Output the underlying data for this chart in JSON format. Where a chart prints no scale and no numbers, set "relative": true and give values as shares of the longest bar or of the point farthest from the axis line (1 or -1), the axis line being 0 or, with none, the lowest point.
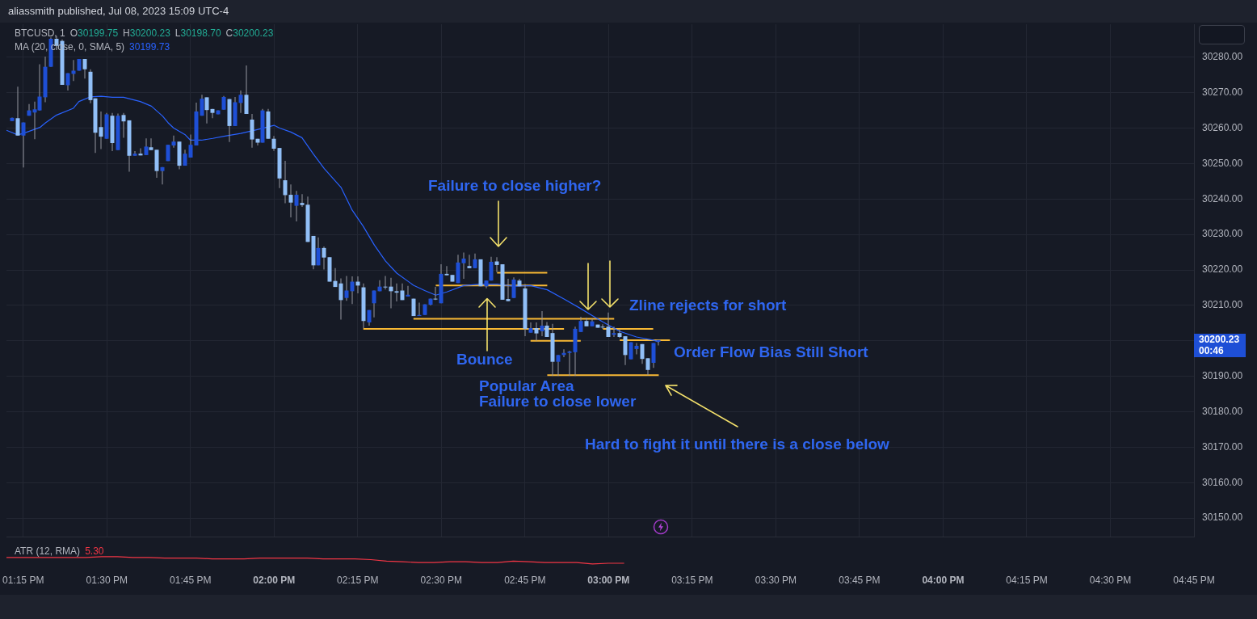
{
  "chart_data": [
    {
      "type": "candlestick",
      "title": "BTCUSD, 1",
      "subtitle": "O30199.75 H30200.23 L30198.70 C30200.23",
      "x": [
        "2023-07-08T13:13",
        "2023-07-08T13:14",
        "2023-07-08T13:15",
        "2023-07-08T13:16",
        "2023-07-08T13:17",
        "2023-07-08T13:18",
        "2023-07-08T13:19",
        "2023-07-08T13:20",
        "2023-07-08T13:21",
        "2023-07-08T13:22",
        "2023-07-08T13:23",
        "2023-07-08T13:24",
        "2023-07-08T13:25",
        "2023-07-08T13:26",
        "2023-07-08T13:27",
        "2023-07-08T13:28",
        "2023-07-08T13:29",
        "2023-07-08T13:30",
        "2023-07-08T13:31",
        "2023-07-08T13:32",
        "2023-07-08T13:33",
        "2023-07-08T13:34",
        "2023-07-08T13:35",
        "2023-07-08T13:36",
        "2023-07-08T13:37",
        "2023-07-08T13:38",
        "2023-07-08T13:39",
        "2023-07-08T13:40",
        "2023-07-08T13:41",
        "2023-07-08T13:42",
        "2023-07-08T13:43",
        "2023-07-08T13:44",
        "2023-07-08T13:45",
        "2023-07-08T13:46",
        "2023-07-08T13:47",
        "2023-07-08T13:48",
        "2023-07-08T13:49",
        "2023-07-08T13:50",
        "2023-07-08T13:51",
        "2023-07-08T13:52",
        "2023-07-08T13:53",
        "2023-07-08T13:54",
        "2023-07-08T13:55",
        "2023-07-08T13:56",
        "2023-07-08T13:57",
        "2023-07-08T13:58",
        "2023-07-08T13:59",
        "2023-07-08T14:00",
        "2023-07-08T14:01",
        "2023-07-08T14:02",
        "2023-07-08T14:03",
        "2023-07-08T14:04",
        "2023-07-08T14:05",
        "2023-07-08T14:06",
        "2023-07-08T14:07",
        "2023-07-08T14:08",
        "2023-07-08T14:09",
        "2023-07-08T14:10",
        "2023-07-08T14:11",
        "2023-07-08T14:12",
        "2023-07-08T14:13",
        "2023-07-08T14:14",
        "2023-07-08T14:15",
        "2023-07-08T14:16",
        "2023-07-08T14:17",
        "2023-07-08T14:18",
        "2023-07-08T14:19",
        "2023-07-08T14:20",
        "2023-07-08T14:21",
        "2023-07-08T14:22",
        "2023-07-08T14:23",
        "2023-07-08T14:24",
        "2023-07-08T14:25",
        "2023-07-08T14:26",
        "2023-07-08T14:27",
        "2023-07-08T14:28",
        "2023-07-08T14:29",
        "2023-07-08T14:30",
        "2023-07-08T14:31",
        "2023-07-08T14:32",
        "2023-07-08T14:33",
        "2023-07-08T14:34",
        "2023-07-08T14:35",
        "2023-07-08T14:36",
        "2023-07-08T14:37",
        "2023-07-08T14:38",
        "2023-07-08T14:39",
        "2023-07-08T14:40",
        "2023-07-08T14:41",
        "2023-07-08T14:42",
        "2023-07-08T14:43",
        "2023-07-08T14:44",
        "2023-07-08T14:45",
        "2023-07-08T14:46",
        "2023-07-08T14:47",
        "2023-07-08T14:48",
        "2023-07-08T14:49",
        "2023-07-08T14:50",
        "2023-07-08T14:51",
        "2023-07-08T14:52",
        "2023-07-08T14:53",
        "2023-07-08T14:54",
        "2023-07-08T14:55",
        "2023-07-08T14:56",
        "2023-07-08T14:57",
        "2023-07-08T14:58",
        "2023-07-08T14:59",
        "2023-07-08T15:00",
        "2023-07-08T15:01",
        "2023-07-08T15:02",
        "2023-07-08T15:03",
        "2023-07-08T15:04",
        "2023-07-08T15:05",
        "2023-07-08T15:06",
        "2023-07-08T15:07",
        "2023-07-08T15:08",
        "2023-07-08T15:09"
      ],
      "ohlc": [
        [
          30262.0,
          30263.0,
          30262.0,
          30262.9
        ],
        [
          30262.8,
          30271.7,
          30257.9,
          30257.9
        ],
        [
          30257.9,
          30261.6,
          30248.9,
          30261.6
        ],
        [
          30263.5,
          30266.8,
          30263.5,
          30265.0
        ],
        [
          30264.4,
          30267.5,
          30256.9,
          30265.3
        ],
        [
          30265.0,
          30278.0,
          30264.9,
          30268.9
        ],
        [
          30268.7,
          30280.2,
          30267.3,
          30277.3
        ],
        [
          30277.3,
          30285.6,
          30277.3,
          30285.2
        ],
        [
          30285.2,
          30286.0,
          30283.2,
          30283.2
        ],
        [
          30284.6,
          30285.0,
          30272.2,
          30272.2
        ],
        [
          30272.1,
          30275.5,
          30270.6,
          30275.5
        ],
        [
          30275.3,
          30279.2,
          30273.3,
          30276.2
        ],
        [
          30276.2,
          30279.5,
          30276.2,
          30279.5
        ],
        [
          30279.5,
          30279.5,
          30274.0,
          30276.6
        ],
        [
          30275.9,
          30276.6,
          30267.0,
          30267.9
        ],
        [
          30268.4,
          30268.4,
          30253.0,
          30258.7
        ],
        [
          30260.3,
          30264.7,
          30254.1,
          30257.6
        ],
        [
          30257.0,
          30264.3,
          30257.0,
          30263.9
        ],
        [
          30263.5,
          30264.3,
          30253.5,
          30255.8
        ],
        [
          30253.8,
          30264.1,
          30253.8,
          30263.5
        ],
        [
          30263.7,
          30264.3,
          30257.3,
          30261.9
        ],
        [
          30262.2,
          30262.2,
          30247.7,
          30252.2
        ],
        [
          30252.2,
          30253.5,
          30252.2,
          30252.8
        ],
        [
          30252.8,
          30254.3,
          30252.3,
          30252.3
        ],
        [
          30252.4,
          30257.1,
          30252.4,
          30254.8
        ],
        [
          30254.6,
          30257.1,
          30253.8,
          30253.8
        ],
        [
          30253.9,
          30253.9,
          30246.0,
          30247.9
        ],
        [
          30247.9,
          30249.0,
          30244.1,
          30249.0
        ],
        [
          30250.7,
          30255.3,
          30250.7,
          30255.3
        ],
        [
          30255.1,
          30257.9,
          30254.5,
          30256.2
        ],
        [
          30256.2,
          30256.2,
          30248.4,
          30249.4
        ],
        [
          30249.4,
          30253.9,
          30249.4,
          30252.8
        ],
        [
          30251.7,
          30258.2,
          30251.7,
          30255.3
        ],
        [
          30255.1,
          30267.2,
          30255.1,
          30264.7
        ],
        [
          30263.5,
          30269.4,
          30263.5,
          30268.3
        ],
        [
          30268.7,
          30268.7,
          30261.3,
          30265.1
        ],
        [
          30265.4,
          30265.4,
          30262.8,
          30264.3
        ],
        [
          30263.9,
          30265.0,
          30263.9,
          30265.0
        ],
        [
          30265.2,
          30269.1,
          30265.2,
          30268.8
        ],
        [
          30268.2,
          30268.2,
          30256.1,
          30260.6
        ],
        [
          30260.6,
          30268.8,
          30260.6,
          30267.3
        ],
        [
          30267.1,
          30270.6,
          30264.3,
          30269.4
        ],
        [
          30269.4,
          30277.7,
          30264.0,
          30264.0
        ],
        [
          30262.4,
          30264.0,
          30254.5,
          30256.8
        ],
        [
          30257.0,
          30257.0,
          30255.1,
          30255.9
        ],
        [
          30255.9,
          30265.4,
          30255.9,
          30265.0
        ],
        [
          30264.7,
          30265.4,
          30257.0,
          30257.0
        ],
        [
          30257.0,
          30257.8,
          30253.6,
          30254.2
        ],
        [
          30254.4,
          30254.4,
          30243.1,
          30245.8
        ],
        [
          30245.3,
          30250.8,
          30238.8,
          30241.1
        ],
        [
          30241.2,
          30244.1,
          30234.8,
          30239.0
        ],
        [
          30238.1,
          30242.3,
          30233.7,
          30241.2
        ],
        [
          30238.9,
          30241.4,
          30237.8,
          30238.3
        ],
        [
          30238.4,
          30240.7,
          30227.9,
          30227.9
        ],
        [
          30229.6,
          30229.6,
          30220.2,
          30221.3
        ],
        [
          30221.3,
          30229.2,
          30221.3,
          30226.2
        ],
        [
          30226.2,
          30226.6,
          30220.1,
          30223.5
        ],
        [
          30223.6,
          30223.6,
          30216.7,
          30216.7
        ],
        [
          30216.9,
          30220.5,
          30215.2,
          30215.2
        ],
        [
          30216.2,
          30217.6,
          30206.0,
          30211.5
        ],
        [
          30212.1,
          30218.3,
          30211.3,
          30214.2
        ],
        [
          30214.0,
          30218.2,
          30210.4,
          30216.7
        ],
        [
          30216.7,
          30218.2,
          30213.4,
          30215.6
        ],
        [
          30215.1,
          30216.2,
          30203.6,
          30205.6
        ],
        [
          30205.2,
          30208.7,
          30204.3,
          30208.7
        ],
        [
          30210.6,
          30214.2,
          30206.6,
          30214.2
        ],
        [
          30214.0,
          30217.1,
          30214.0,
          30215.3
        ],
        [
          30215.3,
          30218.3,
          30214.5,
          30215.1
        ],
        [
          30215.3,
          30217.8,
          30209.2,
          30214.0
        ],
        [
          30214.0,
          30216.2,
          30211.1,
          30213.6
        ],
        [
          30214.2,
          30216.2,
          30211.5,
          30211.5
        ],
        [
          30212.5,
          30215.5,
          30212.5,
          30213.0
        ],
        [
          30211.9,
          30211.9,
          30207.0,
          30207.0
        ],
        [
          30207.0,
          30210.8,
          30207.0,
          30207.3
        ],
        [
          30207.3,
          30210.3,
          30207.3,
          30210.3
        ],
        [
          30210.2,
          30211.9,
          30210.0,
          30211.9
        ],
        [
          30211.9,
          30215.2,
          30211.5,
          30211.7
        ],
        [
          30210.6,
          30221.6,
          30210.6,
          30218.9
        ],
        [
          30218.9,
          30221.1,
          30218.5,
          30218.5
        ],
        [
          30218.6,
          30218.6,
          30216.7,
          30216.7
        ],
        [
          30216.3,
          30224.3,
          30216.3,
          30222.1
        ],
        [
          30221.9,
          30224.9,
          30217.5,
          30223.2
        ],
        [
          30221.1,
          30224.3,
          30220.5,
          30220.5
        ],
        [
          30220.5,
          30224.6,
          30220.5,
          30223.0
        ],
        [
          30223.0,
          30223.0,
          30215.4,
          30215.4
        ],
        [
          30215.4,
          30217.0,
          30214.8,
          30217.0
        ],
        [
          30217.0,
          30223.7,
          30217.0,
          30222.3
        ],
        [
          30222.4,
          30223.6,
          30219.4,
          30221.4
        ],
        [
          30221.6,
          30221.6,
          30211.6,
          30211.6
        ],
        [
          30211.8,
          30217.5,
          30211.2,
          30211.2
        ],
        [
          30212.1,
          30217.9,
          30212.1,
          30217.3
        ],
        [
          30217.0,
          30217.5,
          30215.4,
          30215.4
        ],
        [
          30214.8,
          30216.0,
          30201.3,
          30203.4
        ],
        [
          30202.3,
          30205.2,
          30202.3,
          30203.6
        ],
        [
          30203.6,
          30205.2,
          30200.0,
          30202.1
        ],
        [
          30202.7,
          30208.4,
          30201.3,
          30204.3
        ],
        [
          30204.3,
          30205.3,
          30201.1,
          30201.1
        ],
        [
          30202.2,
          30204.8,
          30190.1,
          30194.1
        ],
        [
          30194.1,
          30196.0,
          30190.1,
          30196.0
        ],
        [
          30196.0,
          30197.6,
          30195.4,
          30196.6
        ],
        [
          30196.6,
          30197.2,
          30190.1,
          30197.0
        ],
        [
          30196.8,
          30204.0,
          30190.1,
          30203.4
        ],
        [
          30202.5,
          30206.8,
          30202.5,
          30205.6
        ],
        [
          30205.6,
          30206.5,
          30204.1,
          30204.1
        ],
        [
          30204.1,
          30206.3,
          30204.1,
          30205.5
        ],
        [
          30204.6,
          30204.6,
          30203.7,
          30203.7
        ],
        [
          30204.0,
          30204.7,
          30203.4,
          30203.8
        ],
        [
          30204.0,
          30208.0,
          30201.1,
          30201.1
        ],
        [
          30201.7,
          30204.0,
          30201.1,
          30202.2
        ],
        [
          30202.2,
          30203.3,
          30200.8,
          30201.1
        ],
        [
          30201.3,
          30201.3,
          30193.2,
          30196.0
        ],
        [
          30194.8,
          30199.6,
          30194.8,
          30199.6
        ],
        [
          30197.7,
          30199.4,
          30196.2,
          30198.6
        ],
        [
          30199.1,
          30199.1,
          30193.5,
          30194.9
        ],
        [
          30195.1,
          30195.1,
          30190.3,
          30191.8
        ],
        [
          30193.8,
          30199.4,
          30192.4,
          30199.4
        ],
        [
          30199.75,
          30200.23,
          30198.7,
          30200.23
        ]
      ],
      "colors": [
        "#1e4fd6",
        "#91bff7",
        "#1e4fd6",
        "#1e4fd6",
        "#1e4fd6",
        "#1e4fd6",
        "#1e4fd6",
        "#1e4fd6",
        "#91bff7",
        "#91bff7",
        "#1e4fd6",
        "#1e4fd6",
        "#1e4fd6",
        "#91bff7",
        "#91bff7",
        "#91bff7",
        "#91bff7",
        "#1e4fd6",
        "#91bff7",
        "#1e4fd6",
        "#91bff7",
        "#91bff7",
        "#1e4fd6",
        "#91bff7",
        "#1e4fd6",
        "#91bff7",
        "#91bff7",
        "#1e4fd6",
        "#1e4fd6",
        "#1e4fd6",
        "#91bff7",
        "#1e4fd6",
        "#1e4fd6",
        "#1e4fd6",
        "#1e4fd6",
        "#91bff7",
        "#91bff7",
        "#1e4fd6",
        "#1e4fd6",
        "#91bff7",
        "#1e4fd6",
        "#1e4fd6",
        "#91bff7",
        "#91bff7",
        "#91bff7",
        "#1e4fd6",
        "#91bff7",
        "#91bff7",
        "#91bff7",
        "#91bff7",
        "#91bff7",
        "#1e4fd6",
        "#91bff7",
        "#91bff7",
        "#91bff7",
        "#1e4fd6",
        "#91bff7",
        "#91bff7",
        "#91bff7",
        "#91bff7",
        "#1e4fd6",
        "#1e4fd6",
        "#91bff7",
        "#91bff7",
        "#1e4fd6",
        "#1e4fd6",
        "#1e4fd6",
        "#91bff7",
        "#91bff7",
        "#91bff7",
        "#91bff7",
        "#1e4fd6",
        "#91bff7",
        "#1e4fd6",
        "#1e4fd6",
        "#1e4fd6",
        "#91bff7",
        "#1e4fd6",
        "#91bff7",
        "#91bff7",
        "#1e4fd6",
        "#1e4fd6",
        "#91bff7",
        "#1e4fd6",
        "#91bff7",
        "#1e4fd6",
        "#1e4fd6",
        "#91bff7",
        "#91bff7",
        "#91bff7",
        "#1e4fd6",
        "#91bff7",
        "#91bff7",
        "#1e4fd6",
        "#91bff7",
        "#1e4fd6",
        "#91bff7",
        "#91bff7",
        "#1e4fd6",
        "#1e4fd6",
        "#1e4fd6",
        "#1e4fd6",
        "#1e4fd6",
        "#91bff7",
        "#1e4fd6",
        "#91bff7",
        "#91bff7",
        "#91bff7",
        "#1e4fd6",
        "#91bff7",
        "#91bff7",
        "#1e4fd6",
        "#1e4fd6",
        "#91bff7",
        "#91bff7",
        "#1e4fd6",
        "#1e4fd6"
      ],
      "series": [
        {
          "type": "line",
          "name": "MA (20, close, 0, SMA, 5)",
          "color": "#2962ff",
          "x": [
            "2023-07-08T13:12",
            "2023-07-08T13:14",
            "2023-07-08T13:15",
            "2023-07-08T13:18",
            "2023-07-08T13:19",
            "2023-07-08T13:21",
            "2023-07-08T13:24",
            "2023-07-08T13:25",
            "2023-07-08T13:27",
            "2023-07-08T13:29",
            "2023-07-08T13:31",
            "2023-07-08T13:33",
            "2023-07-08T13:36",
            "2023-07-08T13:38",
            "2023-07-08T13:40",
            "2023-07-08T13:41",
            "2023-07-08T13:42",
            "2023-07-08T13:44",
            "2023-07-08T13:45",
            "2023-07-08T13:47",
            "2023-07-08T13:49",
            "2023-07-08T13:51",
            "2023-07-08T13:54",
            "2023-07-08T13:57",
            "2023-07-08T14:00",
            "2023-07-08T14:01",
            "2023-07-08T14:03",
            "2023-07-08T14:05",
            "2023-07-08T14:07",
            "2023-07-08T14:09",
            "2023-07-08T14:12",
            "2023-07-08T14:14",
            "2023-07-08T14:16",
            "2023-07-08T14:18",
            "2023-07-08T14:20",
            "2023-07-08T14:22",
            "2023-07-08T14:25",
            "2023-07-08T14:27",
            "2023-07-08T14:29",
            "2023-07-08T14:31",
            "2023-07-08T14:34",
            "2023-07-08T14:37",
            "2023-07-08T14:40",
            "2023-07-08T14:43",
            "2023-07-08T14:46",
            "2023-07-08T14:49",
            "2023-07-08T14:52",
            "2023-07-08T14:55",
            "2023-07-08T14:57",
            "2023-07-08T14:59",
            "2023-07-08T15:02",
            "2023-07-08T15:05",
            "2023-07-08T15:08",
            "2023-07-08T15:09"
          ],
          "values": [
            30259.4,
            30258.1,
            30258.5,
            30260.2,
            30261.5,
            30263.7,
            30265.6,
            30267.5,
            30268.8,
            30269.0,
            30268.7,
            30268.7,
            30267.5,
            30266.2,
            30263.4,
            30261.5,
            30260.0,
            30258.2,
            30256.6,
            30256.6,
            30257.1,
            30257.7,
            30258.5,
            30259.6,
            30260.8,
            30260.0,
            30258.9,
            30257.3,
            30252.8,
            30248.6,
            30243.3,
            30236.9,
            30232.3,
            30227.0,
            30222.5,
            30219.1,
            30215.7,
            30214.2,
            30212.9,
            30213.8,
            30215.6,
            30216.0,
            30216.0,
            30215.4,
            30215.6,
            30214.4,
            30211.8,
            30209.1,
            30207.2,
            30205.3,
            30202.7,
            30201.1,
            30200.2,
            30199.7
          ]
        },
        {
          "type": "line",
          "color": "#f9b934",
          "x": [
            "2023-07-08T14:40",
            "2023-07-08T14:49"
          ],
          "values": [
            30219.2,
            30219.2
          ]
        },
        {
          "type": "line",
          "color": "#f9b934",
          "x": [
            "2023-07-08T14:29",
            "2023-07-08T14:49"
          ],
          "values": [
            30215.6,
            30215.6
          ]
        },
        {
          "type": "line",
          "color": "#f9b934",
          "x": [
            "2023-07-08T14:25",
            "2023-07-08T15:01"
          ],
          "values": [
            30206.2,
            30206.2
          ]
        },
        {
          "type": "line",
          "color": "#f9b934",
          "x": [
            "2023-07-08T14:16",
            "2023-07-08T14:52"
          ],
          "values": [
            30203.4,
            30203.4
          ]
        },
        {
          "type": "line",
          "color": "#f9b934",
          "x": [
            "2023-07-08T14:59",
            "2023-07-08T15:08"
          ],
          "values": [
            30203.4,
            30203.4
          ]
        },
        {
          "type": "line",
          "color": "#f9b934",
          "x": [
            "2023-07-08T14:46",
            "2023-07-08T14:55"
          ],
          "values": [
            30200.0,
            30200.0
          ]
        },
        {
          "type": "line",
          "color": "#f9b934",
          "x": [
            "2023-07-08T15:02",
            "2023-07-08T15:11"
          ],
          "values": [
            30200.2,
            30200.2
          ]
        },
        {
          "type": "line",
          "color": "#f9b934",
          "x": [
            "2023-07-08T14:49",
            "2023-07-08T15:09"
          ],
          "values": [
            30190.3,
            30190.3
          ]
        }
      ],
      "xlim": [
        "2023-07-08T13:12",
        "2023-07-08T16:45"
      ],
      "xticks": [
        {
          "value": "2023-07-08T13:15",
          "label": "01:15 PM"
        },
        {
          "value": "2023-07-08T13:30",
          "label": "01:30 PM"
        },
        {
          "value": "2023-07-08T13:45",
          "label": "01:45 PM"
        },
        {
          "value": "2023-07-08T14:00",
          "label": "02:00 PM"
        },
        {
          "value": "2023-07-08T14:15",
          "label": "02:15 PM"
        },
        {
          "value": "2023-07-08T14:30",
          "label": "02:30 PM"
        },
        {
          "value": "2023-07-08T14:45",
          "label": "02:45 PM"
        },
        {
          "value": "2023-07-08T15:00",
          "label": "03:00 PM"
        },
        {
          "value": "2023-07-08T15:15",
          "label": "03:15 PM"
        },
        {
          "value": "2023-07-08T15:30",
          "label": "03:30 PM"
        },
        {
          "value": "2023-07-08T15:45",
          "label": "03:45 PM"
        },
        {
          "value": "2023-07-08T16:00",
          "label": "04:00 PM"
        },
        {
          "value": "2023-07-08T16:15",
          "label": "04:15 PM"
        },
        {
          "value": "2023-07-08T16:30",
          "label": "04:30 PM"
        },
        {
          "value": "2023-07-08T16:45",
          "label": "04:45 PM"
        }
      ],
      "ylim": [
        30144.8,
        30289.3
      ],
      "yticks": [
        {
          "value": 30150,
          "label": "30150.00"
        },
        {
          "value": 30160,
          "label": "30160.00"
        },
        {
          "value": 30170,
          "label": "30170.00"
        },
        {
          "value": 30180,
          "label": "30180.00"
        },
        {
          "value": 30190,
          "label": "30190.00"
        },
        {
          "value": 30200,
          "label": null
        },
        {
          "value": 30210,
          "label": "30210.00"
        },
        {
          "value": 30220,
          "label": "30220.00"
        },
        {
          "value": 30230,
          "label": "30230.00"
        },
        {
          "value": 30240,
          "label": "30240.00"
        },
        {
          "value": 30250,
          "label": "30250.00"
        },
        {
          "value": 30260,
          "label": "30260.00"
        },
        {
          "value": 30270,
          "label": "30270.00"
        },
        {
          "value": 30280,
          "label": "30280.00"
        }
      ],
      "grid": true,
      "legend": "top left",
      "marker": "none",
      "annotations": [
        "aliassmith published, Jul 08, 2023 15:09 UTC-4",
        "30199.73",
        "Failure to close higher?",
        "Bounce",
        "Popular Area",
        "Failure to close lower",
        "Zline rejects for short",
        "Order Flow Bias Still Short",
        "Hard to fight it until there is a close below",
        "30200.23\n00:46"
      ]
    },
    {
      "type": "line",
      "relative": true,
      "title": "ATR (12, RMA)",
      "categories": [
        null,
        null,
        null,
        null,
        null,
        null,
        null,
        null,
        null,
        null,
        null,
        null,
        null,
        null,
        null,
        null,
        null,
        null,
        null,
        null,
        null,
        null,
        null,
        null,
        null,
        null,
        null,
        null,
        null,
        null,
        null,
        null,
        null,
        null,
        null,
        null,
        null,
        null,
        null,
        null,
        null,
        null,
        null,
        null,
        null,
        null,
        null,
        null,
        null,
        null,
        null,
        null,
        null,
        null,
        null,
        null,
        null,
        null,
        null,
        null,
        null,
        null,
        null,
        null,
        null,
        null,
        null,
        null,
        null,
        null,
        null,
        null
      ],
      "series": [
        {
          "color": "#f23645",
          "values": [
            0.9,
            0.9,
            0.9,
            0.9,
            0.9,
            0.9,
            1,
            1,
            0.9,
            0.9,
            0.8,
            0.8,
            0.8,
            0.7,
            0.7,
            0.7,
            0.8,
            0.8,
            0.8,
            0.8,
            0.7,
            0.7,
            0.7,
            0.6,
            0.4,
            0.3,
            0.2,
            0.2,
            0.3,
            0.3,
            0.2,
            0.2,
            0.4,
            0.3,
            0.2,
            0.2,
            0.2,
            0,
            0.1,
            0.1,
            null,
            null,
            null,
            null,
            null,
            null,
            null,
            null,
            null,
            null,
            null,
            null,
            null,
            null,
            null,
            null,
            null,
            null,
            null,
            null,
            null,
            null,
            null,
            null,
            null,
            null,
            null,
            null,
            null,
            null,
            null,
            null
          ]
        }
      ],
      "marker": "none",
      "annotations": [
        "5.30"
      ]
    }
  ]
}
